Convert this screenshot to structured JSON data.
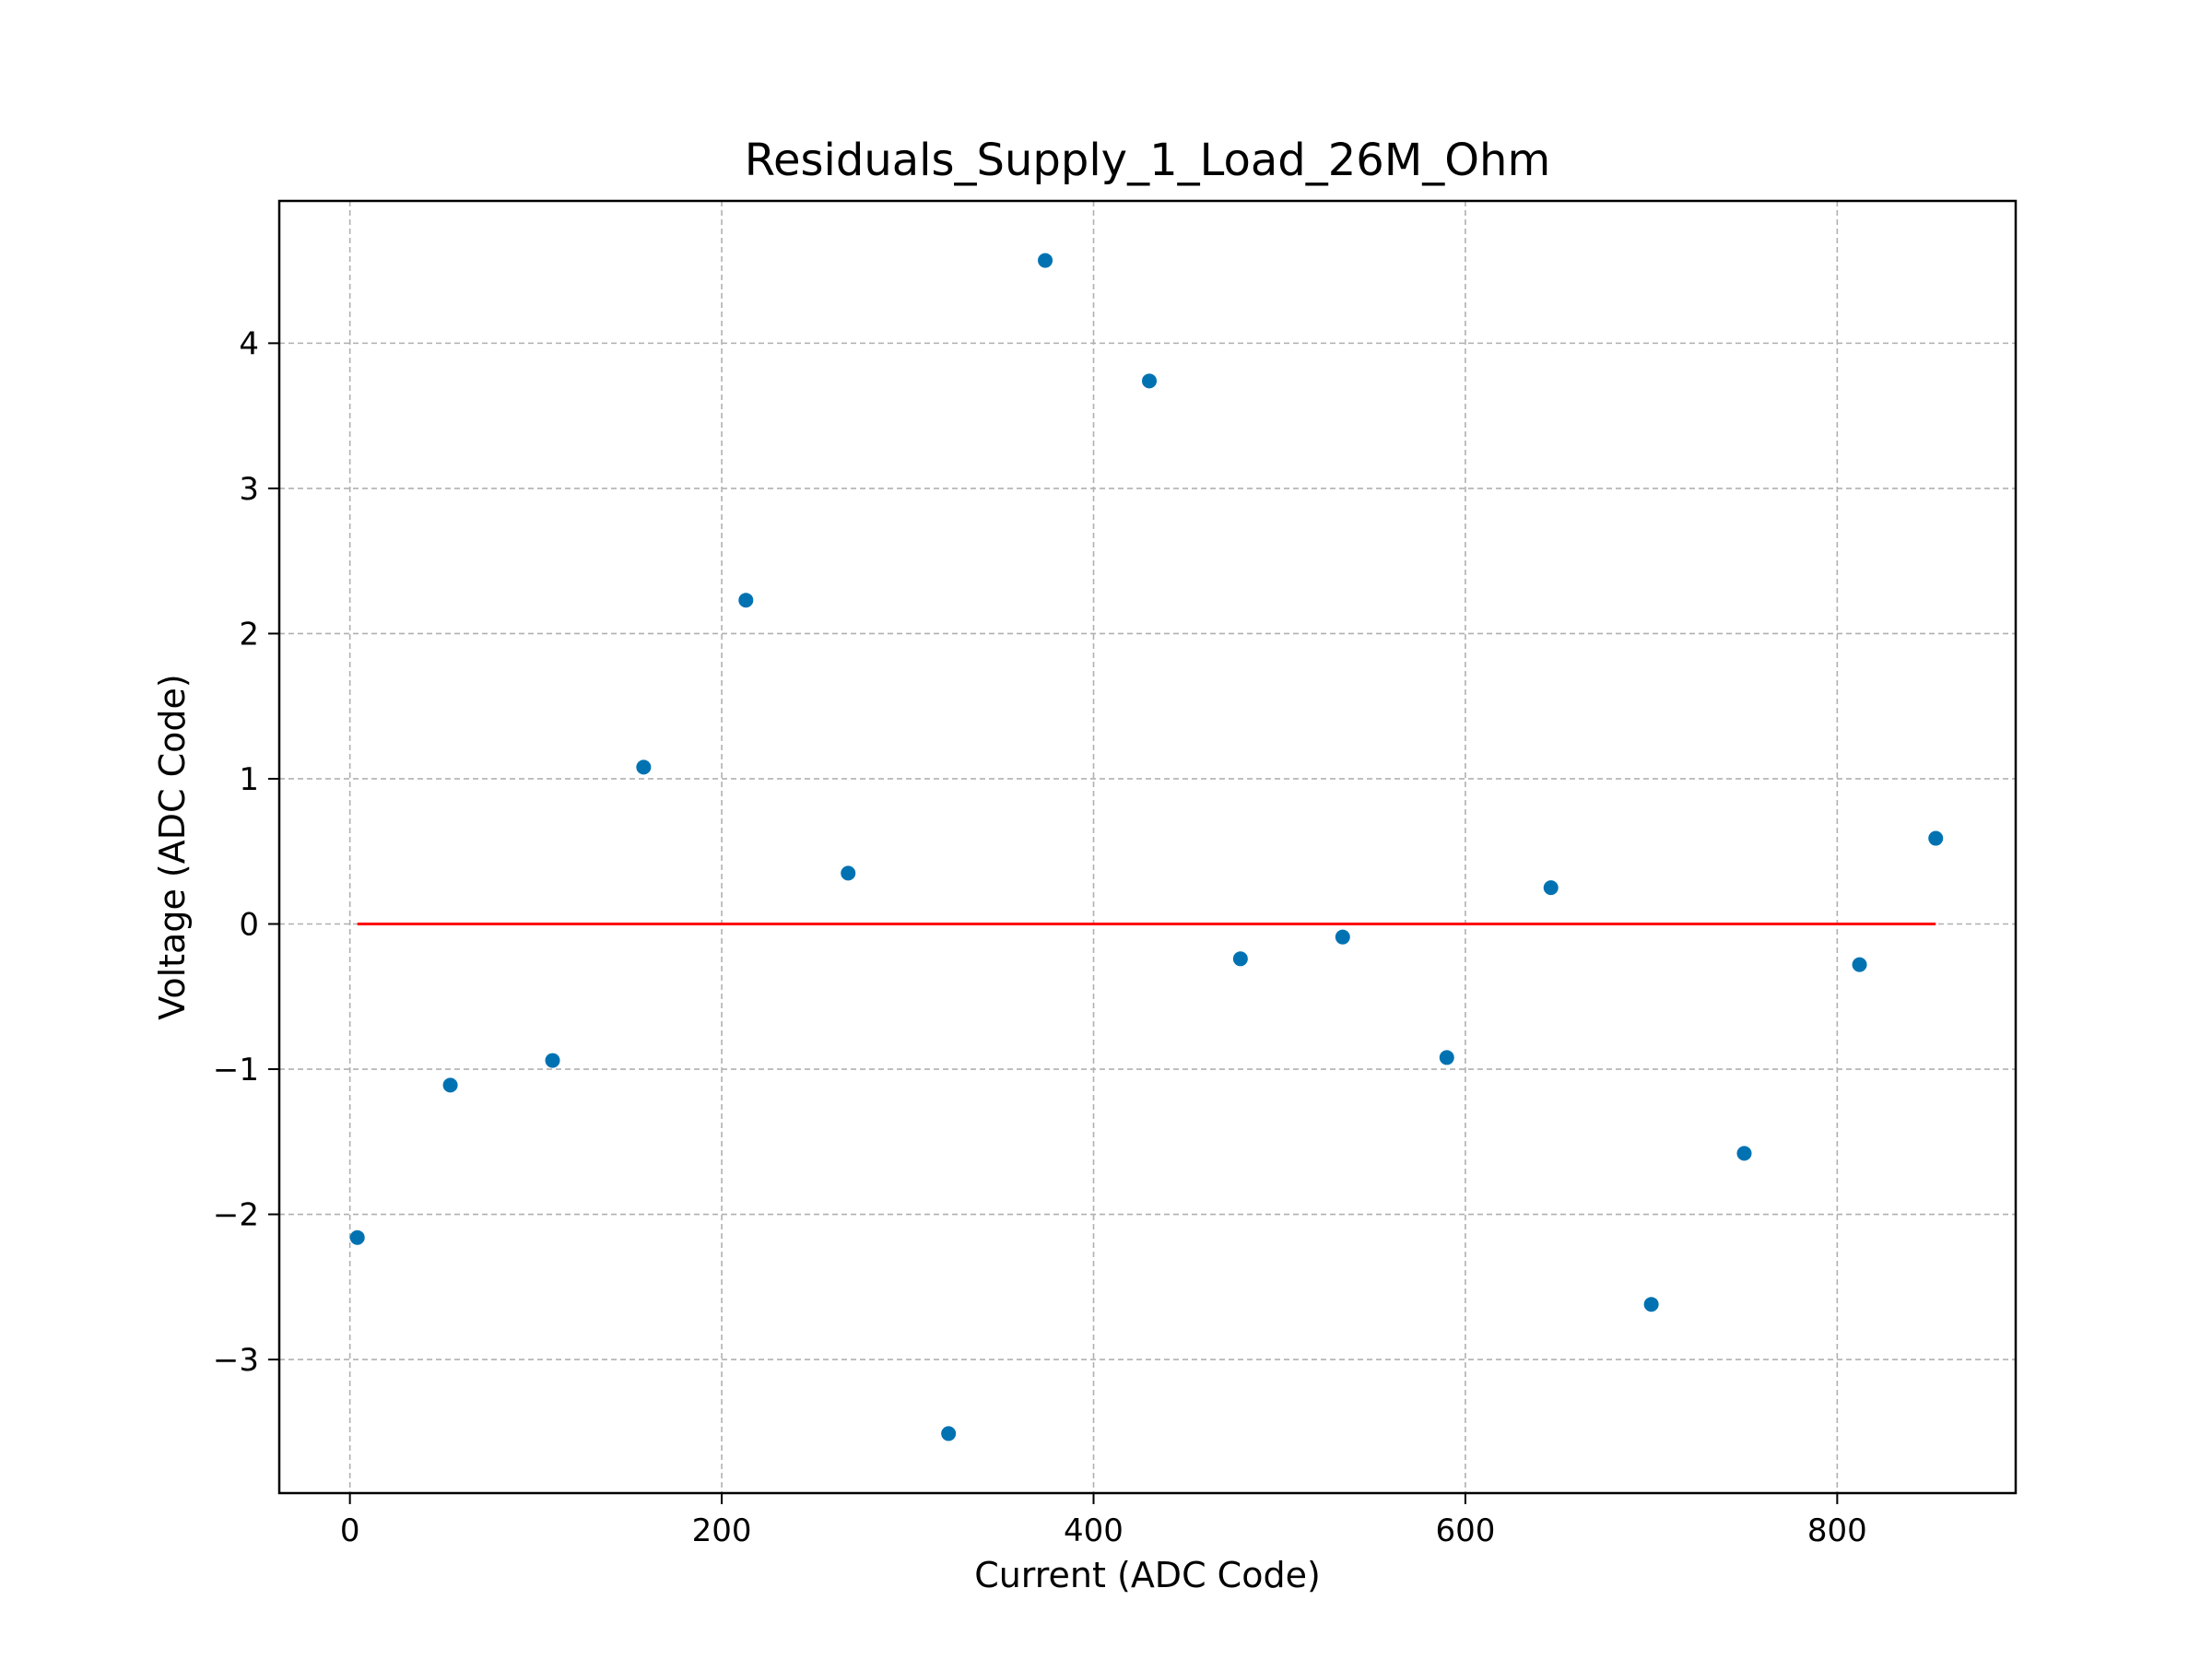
{
  "chart_data": {
    "type": "scatter",
    "title": "Residuals_Supply_1_Load_26M_Ohm",
    "xlabel": "Current (ADC Code)",
    "ylabel": "Voltage (ADC Code)",
    "xlim": [
      -38,
      896
    ],
    "ylim": [
      -3.92,
      4.98
    ],
    "xticks": [
      0,
      200,
      400,
      600,
      800
    ],
    "yticks": [
      -3,
      -2,
      -1,
      0,
      1,
      2,
      3,
      4
    ],
    "xtick_labels": [
      "0",
      "200",
      "400",
      "600",
      "800"
    ],
    "ytick_labels": [
      "−3",
      "−2",
      "−1",
      "0",
      "1",
      "2",
      "3",
      "4"
    ],
    "grid": true,
    "point_color": "#0072b2",
    "fit_color": "#ff0000",
    "points": [
      {
        "x": 4,
        "y": -2.16
      },
      {
        "x": 54,
        "y": -1.11
      },
      {
        "x": 109,
        "y": -0.94
      },
      {
        "x": 158,
        "y": 1.08
      },
      {
        "x": 213,
        "y": 2.23
      },
      {
        "x": 268,
        "y": 0.35
      },
      {
        "x": 322,
        "y": -3.51
      },
      {
        "x": 374,
        "y": 4.57
      },
      {
        "x": 430,
        "y": 3.74
      },
      {
        "x": 479,
        "y": -0.24
      },
      {
        "x": 534,
        "y": -0.09
      },
      {
        "x": 590,
        "y": -0.92
      },
      {
        "x": 646,
        "y": 0.25
      },
      {
        "x": 700,
        "y": -2.62
      },
      {
        "x": 750,
        "y": -1.58
      },
      {
        "x": 812,
        "y": -0.28
      },
      {
        "x": 853,
        "y": 0.59
      }
    ],
    "fit_line": {
      "x": [
        4,
        853
      ],
      "y": [
        0,
        0
      ]
    }
  }
}
